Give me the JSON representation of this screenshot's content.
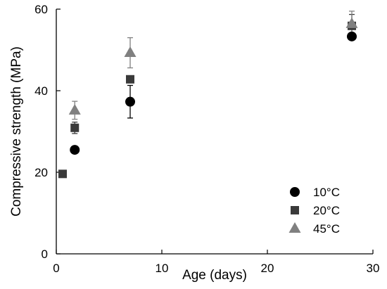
{
  "chart_data": {
    "type": "scatter",
    "title": "",
    "xlabel": "Age (days)",
    "ylabel": "Compressive strength (MPa)",
    "xlim": [
      0,
      30
    ],
    "ylim": [
      0,
      60
    ],
    "xticks": [
      0,
      10,
      20,
      30
    ],
    "yticks": [
      0,
      20,
      40,
      60
    ],
    "grid": false,
    "legend_position": "bottom-right",
    "series": [
      {
        "name": "10°C",
        "marker": "circle",
        "color": "#000000",
        "x": [
          1.75,
          7,
          28
        ],
        "y": [
          25.5,
          37.3,
          53.3
        ],
        "error": [
          0.4,
          4.0,
          0.6
        ]
      },
      {
        "name": "20°C",
        "marker": "square",
        "color": "#3a3a3a",
        "x": [
          0.6,
          1.75,
          7,
          28
        ],
        "y": [
          19.6,
          30.9,
          42.8,
          55.9
        ],
        "error": [
          0.3,
          1.4,
          0.7,
          2.8
        ]
      },
      {
        "name": "45°C",
        "marker": "triangle",
        "color": "#808080",
        "x": [
          1.75,
          7,
          28
        ],
        "y": [
          35.2,
          49.3,
          56.4
        ],
        "error": [
          2.2,
          3.7,
          3.1
        ]
      }
    ]
  }
}
